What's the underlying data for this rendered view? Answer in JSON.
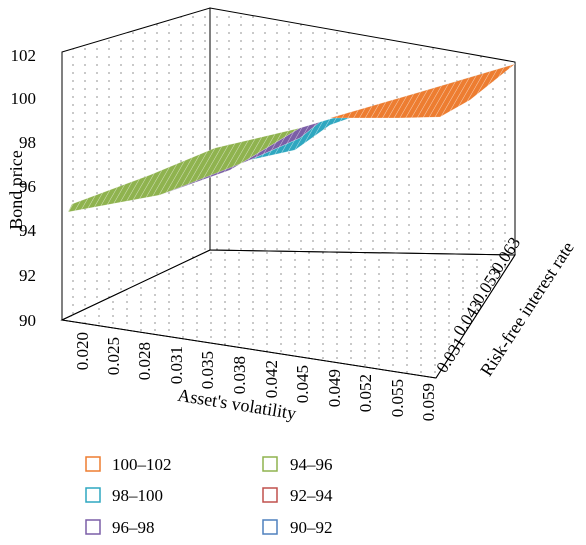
{
  "chart_data": {
    "type": "surface3d",
    "zlabel": "Bond price",
    "xlabel": "Asset's volatility",
    "ylabel": "Risk-free interest rate",
    "z_ticks": [
      "90",
      "92",
      "94",
      "96",
      "98",
      "100",
      "102"
    ],
    "zlim": [
      90,
      102
    ],
    "x_ticks": [
      "0.020",
      "0.025",
      "0.028",
      "0.031",
      "0.035",
      "0.038",
      "0.042",
      "0.045",
      "0.049",
      "0.052",
      "0.055",
      "0.059"
    ],
    "y_ticks": [
      "0.031",
      "0.043",
      "0.053",
      "0.063"
    ],
    "grid": true,
    "legend": [
      {
        "label": "100–102",
        "color": "#ed7d31"
      },
      {
        "label": "98–100",
        "color": "#2fa7c0"
      },
      {
        "label": "96–98",
        "color": "#7b5ea7"
      },
      {
        "label": "94–96",
        "color": "#8fb34f"
      },
      {
        "label": "92–94",
        "color": "#c0504d"
      },
      {
        "label": "90–92",
        "color": "#4f81bd"
      }
    ],
    "surface_z_range": [
      95,
      102
    ],
    "surface": [
      {
        "x": "0.020",
        "y_range": [
          "0.031",
          "0.063"
        ],
        "z": [
          95.0,
          97.0
        ]
      },
      {
        "x": "0.038",
        "y_range": [
          "0.031",
          "0.063"
        ],
        "z": [
          97.5,
          98.4
        ]
      },
      {
        "x": "0.059",
        "y_range": [
          "0.031",
          "0.063"
        ],
        "z": [
          100.9,
          101.9
        ]
      }
    ],
    "band_labels": [
      "100–102",
      "98–100",
      "96–98",
      "94–96"
    ]
  }
}
